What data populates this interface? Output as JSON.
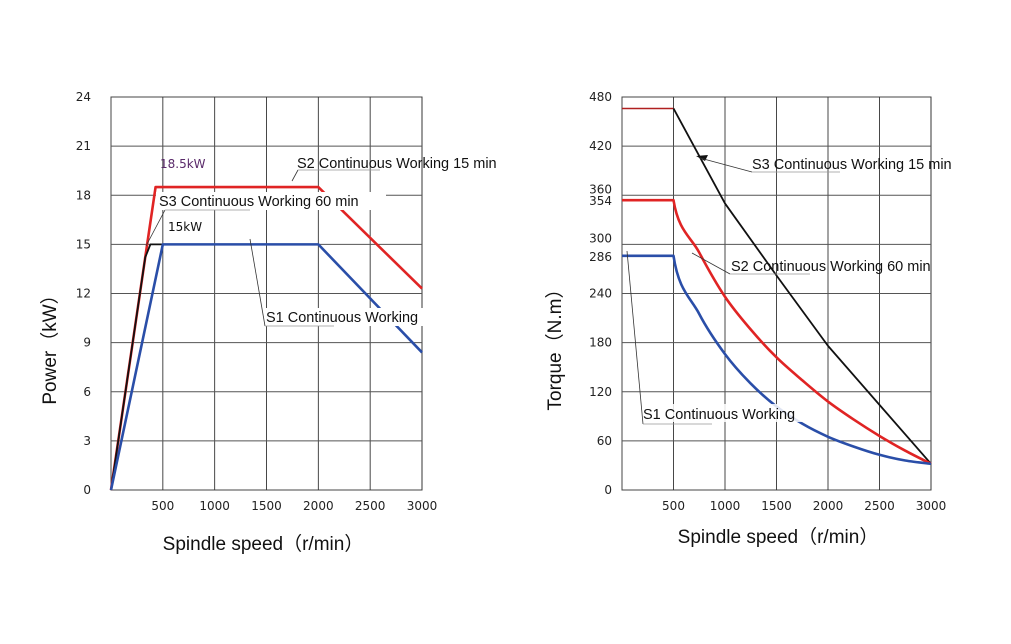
{
  "chart_data": [
    {
      "type": "line",
      "title": "",
      "xlabel": "Spindle speed（r/min）",
      "ylabel": "Power（kW）",
      "xlim": [
        0,
        3000
      ],
      "ylim": [
        0,
        24
      ],
      "xticks": [
        500,
        1000,
        1500,
        2000,
        2500,
        3000
      ],
      "xtick_labels": [
        "500",
        "1000",
        "1500",
        "2000",
        "2500",
        "3000"
      ],
      "yticks": [
        0,
        3,
        6,
        9,
        12,
        15,
        18,
        21,
        24
      ],
      "ytick_labels": [
        "0",
        "3",
        "6",
        "9",
        "12",
        "15",
        "18",
        "21",
        "24"
      ],
      "grid": true,
      "series": [
        {
          "name": "S2 Continuous Working 15 min",
          "color": "#e02424",
          "x": [
            0,
            430,
            2000,
            3000
          ],
          "y": [
            0,
            18.5,
            18.5,
            12.3
          ]
        },
        {
          "name": "S3 Continuous Working 60 min",
          "color": "#111111",
          "x": [
            0,
            330,
            380,
            500
          ],
          "y": [
            0,
            14.2,
            15,
            15
          ]
        },
        {
          "name": "S1 Continuous Working",
          "color": "#2a4ea8",
          "x": [
            0,
            500,
            2000,
            3000
          ],
          "y": [
            0,
            15,
            15,
            8.4
          ]
        }
      ],
      "annotations": [
        {
          "text": "18.5kW",
          "color": "#5a2a6a"
        },
        {
          "text": "15kW",
          "color": "#111111"
        },
        {
          "text": "S2 Continuous Working 15 min"
        },
        {
          "text": "S3 Continuous Working 60 min"
        },
        {
          "text": "S1 Continuous Working"
        }
      ]
    },
    {
      "type": "line",
      "title": "",
      "xlabel": "Spindle speed（r/min）",
      "ylabel": "Torque（N.m）",
      "xlim": [
        0,
        3000
      ],
      "ylim": [
        0,
        480
      ],
      "xticks": [
        500,
        1000,
        1500,
        2000,
        2500,
        3000
      ],
      "xtick_labels": [
        "500",
        "1000",
        "1500",
        "2000",
        "2500",
        "3000"
      ],
      "yticks": [
        0,
        60,
        120,
        180,
        240,
        286,
        300,
        354,
        360,
        420,
        480
      ],
      "ytick_labels": [
        "0",
        "60",
        "120",
        "180",
        "240",
        "286",
        "300",
        "354",
        "360",
        "420",
        "480"
      ],
      "grid": true,
      "series": [
        {
          "name": "S3 Continuous Working 15 min",
          "color": "#111111",
          "top_color": "#b02020",
          "x": [
            0,
            500,
            1000,
            1500,
            2000,
            2500,
            3000
          ],
          "y": [
            466,
            466,
            350,
            262,
            176,
            104,
            32
          ]
        },
        {
          "name": "S2 Continuous Working 60 min",
          "color": "#e02424",
          "x": [
            0,
            500,
            750,
            1000,
            1250,
            1500,
            1750,
            2000,
            2250,
            2500,
            2750,
            3000
          ],
          "y": [
            354,
            354,
            290,
            236,
            196,
            162,
            134,
            108,
            86,
            66,
            48,
            32
          ]
        },
        {
          "name": "S1 Continuous Working",
          "color": "#2a4ea8",
          "x": [
            0,
            500,
            750,
            1000,
            1250,
            1500,
            1750,
            2000,
            2250,
            2500,
            2750,
            3000
          ],
          "y": [
            286,
            286,
            215,
            166,
            130,
            102,
            81,
            65,
            53,
            43,
            36,
            32
          ]
        }
      ],
      "annotations": [
        {
          "text": "S3 Continuous Working 15 min"
        },
        {
          "text": "S2 Continuous Working 60 min"
        },
        {
          "text": "S1 Continuous Working"
        }
      ]
    }
  ]
}
